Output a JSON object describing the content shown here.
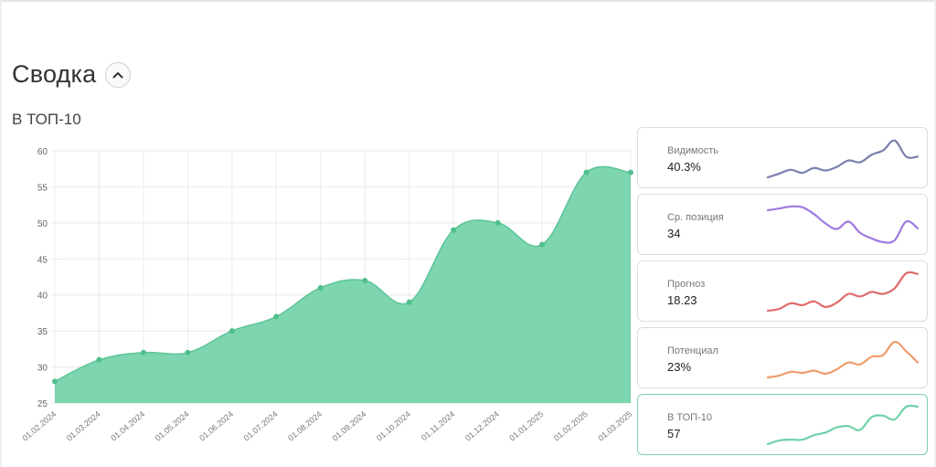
{
  "header": {
    "title": "Сводка",
    "collapse_icon": "chevron-up-icon"
  },
  "subtitle": "В ТОП-10",
  "chart_data": {
    "type": "area",
    "x": [
      "01.02.2024",
      "01.03.2024",
      "01.04.2024",
      "01.05.2024",
      "01.06.2024",
      "01.07.2024",
      "01.08.2024",
      "01.09.2024",
      "01.10.2024",
      "01.11.2024",
      "01.12.2024",
      "01.01.2025",
      "01.02.2025",
      "01.03.2025"
    ],
    "values": [
      28,
      31,
      32,
      32,
      35,
      37,
      41,
      42,
      39,
      49,
      50,
      47,
      57,
      57
    ],
    "ylim": [
      25,
      60
    ],
    "yticks": [
      "60",
      "55",
      "50",
      "45",
      "40",
      "35",
      "30",
      "25"
    ],
    "grid": true,
    "color": "#6fd1a7"
  },
  "metrics": [
    {
      "label": "Видимость",
      "value": "40.3%",
      "color": "#7a7fae",
      "trend": [
        0.0,
        0.1,
        0.2,
        0.12,
        0.25,
        0.18,
        0.28,
        0.45,
        0.4,
        0.6,
        0.72,
        0.98,
        0.55,
        0.55
      ],
      "active": false
    },
    {
      "label": "Ср. позиция",
      "value": "34",
      "color": "#a07be0",
      "trend": [
        0.9,
        0.95,
        1.0,
        0.98,
        0.8,
        0.55,
        0.4,
        0.6,
        0.3,
        0.15,
        0.05,
        0.1,
        0.6,
        0.42
      ],
      "active": false
    },
    {
      "label": "Прогноз",
      "value": "18.23",
      "color": "#e06b6b",
      "trend": [
        0.0,
        0.05,
        0.2,
        0.15,
        0.25,
        0.1,
        0.22,
        0.45,
        0.38,
        0.5,
        0.45,
        0.6,
        1.0,
        0.98
      ],
      "active": false
    },
    {
      "label": "Потенциал",
      "value": "23%",
      "color": "#ee9d6a",
      "trend": [
        0.0,
        0.05,
        0.15,
        0.12,
        0.18,
        0.1,
        0.22,
        0.4,
        0.35,
        0.55,
        0.6,
        0.95,
        0.7,
        0.4
      ],
      "active": false
    },
    {
      "label": "В ТОП-10",
      "value": "57",
      "color": "#6fd1a7",
      "trend": [
        0.0,
        0.1,
        0.12,
        0.12,
        0.24,
        0.31,
        0.45,
        0.48,
        0.38,
        0.72,
        0.76,
        0.66,
        1.0,
        1.0
      ],
      "active": true
    }
  ]
}
